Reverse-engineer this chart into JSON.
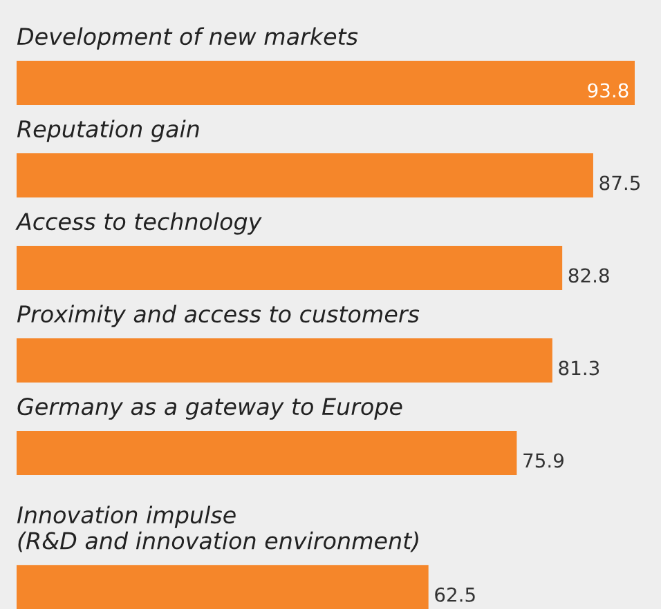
{
  "chart_data": {
    "type": "bar",
    "orientation": "horizontal",
    "categories": [
      "Development of new markets",
      "Reputation gain",
      "Access to technology",
      "Proximity and access to customers",
      "Germany as a gateway to Europe",
      "Innovation impulse\n(R&D and innovation environment)"
    ],
    "values": [
      93.8,
      87.5,
      82.8,
      81.3,
      75.9,
      62.5
    ],
    "color": "#f5862a",
    "data_labels": true
  }
}
